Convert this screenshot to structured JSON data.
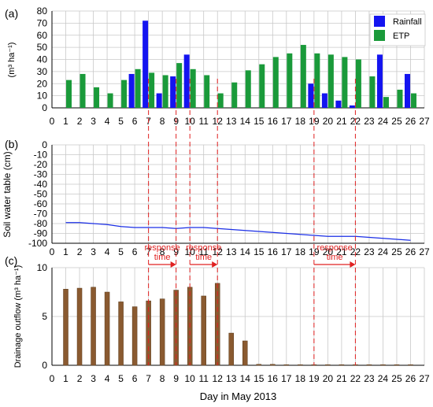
{
  "colors": {
    "rainfall": "#1414f0",
    "etp": "#1a9a3a",
    "water_table": "#1a2ee6",
    "drainage": "#8a5a30",
    "response": "#e02020",
    "grid": "#c8c8c8"
  },
  "x_ticks": [
    "0",
    "1",
    "2",
    "3",
    "4",
    "5",
    "6",
    "7",
    "8",
    "9",
    "10",
    "11",
    "12",
    "13",
    "14",
    "15",
    "16",
    "17",
    "18",
    "19",
    "20",
    "21",
    "22",
    "23",
    "24",
    "25",
    "26",
    "27"
  ],
  "xlabel": "Day in May 2013",
  "response_days": [
    7,
    9,
    10,
    12,
    19,
    22
  ],
  "response_arrows": [
    {
      "from": 7,
      "to": 9,
      "label1": "response",
      "label2": "time"
    },
    {
      "from": 10,
      "to": 12,
      "label1": "response",
      "label2": "time"
    },
    {
      "from": 19,
      "to": 22,
      "label1": "response",
      "label2": "time"
    }
  ],
  "chart_data": [
    {
      "panel": "(a)",
      "type": "bar",
      "ylabel": "(m³ ha⁻¹)",
      "ylim": [
        0,
        80
      ],
      "yticks": [
        "0",
        "10",
        "20",
        "30",
        "40",
        "50",
        "60",
        "70",
        "80"
      ],
      "legend_position": "top-right",
      "series": [
        {
          "name": "Rainfall",
          "x": [
            6,
            7,
            8,
            9,
            10,
            19,
            20,
            21,
            22,
            24,
            26
          ],
          "values": [
            28,
            72,
            12,
            26,
            44,
            20,
            12,
            6,
            2,
            44,
            28
          ]
        },
        {
          "name": "ETP",
          "x": [
            1,
            2,
            3,
            4,
            5,
            6,
            7,
            8,
            9,
            10,
            11,
            12,
            13,
            14,
            15,
            16,
            17,
            18,
            19,
            20,
            21,
            22,
            23,
            24,
            25,
            26
          ],
          "values": [
            23,
            28,
            17,
            12,
            23,
            32,
            29,
            27,
            37,
            32,
            27,
            12,
            21,
            31,
            36,
            42,
            45,
            52,
            45,
            44,
            42,
            40,
            26,
            9,
            15,
            12
          ]
        }
      ]
    },
    {
      "panel": "(b)",
      "type": "line",
      "ylabel": "Soil water table (cm)",
      "ylim": [
        -100,
        0
      ],
      "yticks": [
        "0",
        "-10",
        "-20",
        "-30",
        "-40",
        "-50",
        "-60",
        "-70",
        "-80",
        "-90",
        "-100"
      ],
      "series": [
        {
          "x": [
            1,
            2,
            3,
            4,
            5,
            6,
            7,
            8,
            9,
            10,
            11,
            12,
            13,
            14,
            15,
            16,
            17,
            18,
            19,
            20,
            21,
            22,
            23,
            24,
            25,
            26
          ],
          "values": [
            -79,
            -79,
            -80,
            -81,
            -83,
            -84,
            -84,
            -84,
            -85,
            -84,
            -84,
            -85,
            -86,
            -87,
            -88,
            -89,
            -90,
            -91,
            -92,
            -93,
            -93,
            -93,
            -94,
            -95,
            -96,
            -97
          ]
        }
      ]
    },
    {
      "panel": "(c)",
      "type": "bar",
      "ylabel": "Drainage outflow (m³ ha⁻¹)",
      "ylim": [
        0,
        10
      ],
      "yticks": [
        "0",
        "5",
        "10"
      ],
      "series": [
        {
          "x": [
            1,
            2,
            3,
            4,
            5,
            6,
            7,
            8,
            9,
            10,
            11,
            12,
            13,
            14,
            15,
            16,
            17,
            18,
            19,
            20,
            21,
            22,
            23,
            24,
            25,
            26
          ],
          "values": [
            7.8,
            7.9,
            8.0,
            7.5,
            6.5,
            6.0,
            6.6,
            6.8,
            7.7,
            8.0,
            7.1,
            8.4,
            3.3,
            2.5,
            0.1,
            0.1,
            0.05,
            0.05,
            0.05,
            0.05,
            0.05,
            0.05,
            0.05,
            0.05,
            0.05,
            0.05
          ]
        }
      ]
    }
  ]
}
